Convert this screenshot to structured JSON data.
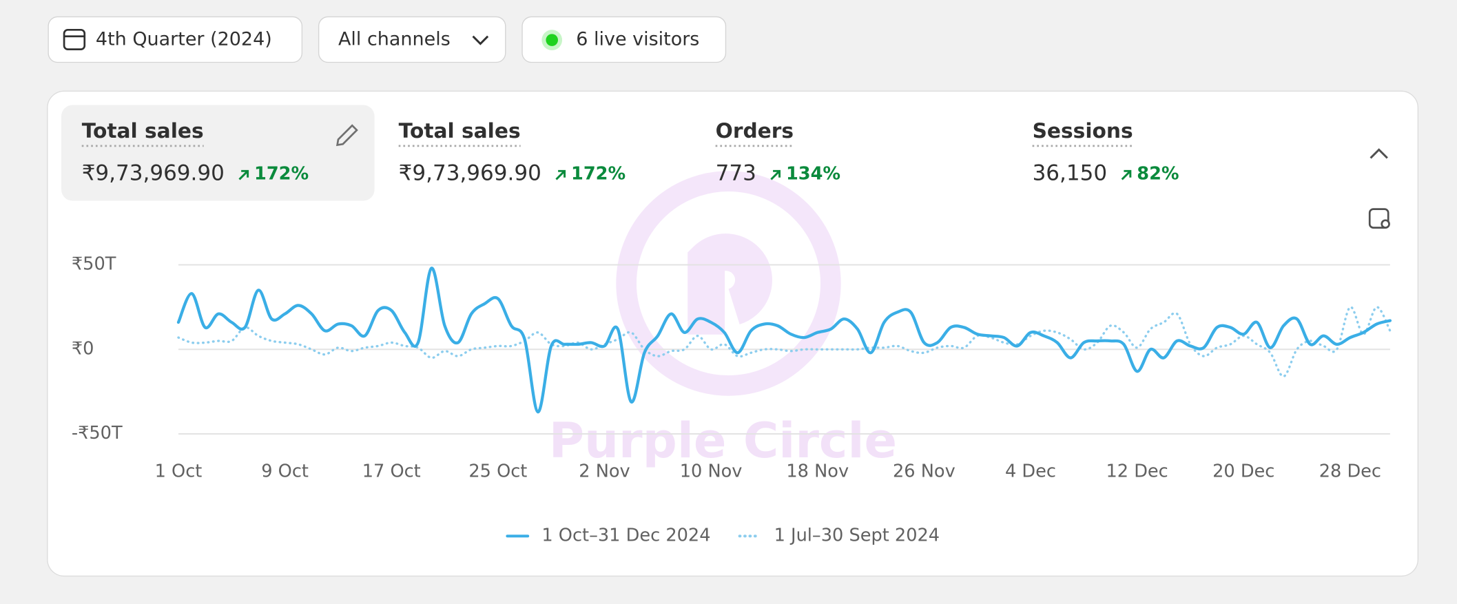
{
  "toolbar": {
    "date_range": "4th Quarter (2024)",
    "channel": "All channels",
    "live_visitors": "6 live visitors"
  },
  "metrics": [
    {
      "label": "Total sales",
      "value": "₹9,73,969.90",
      "change": "172%"
    },
    {
      "label": "Total sales",
      "value": "₹9,73,969.90",
      "change": "172%"
    },
    {
      "label": "Orders",
      "value": "773",
      "change": "134%"
    },
    {
      "label": "Sessions",
      "value": "36,150",
      "change": "82%"
    }
  ],
  "watermark": "Purple Circle",
  "chart_data": {
    "type": "line",
    "categories": [
      "1 Oct",
      null,
      null,
      null,
      null,
      null,
      null,
      null,
      "9 Oct",
      null,
      null,
      null,
      null,
      null,
      null,
      null,
      "17 Oct",
      null,
      null,
      null,
      null,
      null,
      null,
      null,
      "25 Oct",
      null,
      null,
      null,
      null,
      null,
      null,
      null,
      "2 Nov",
      null,
      null,
      null,
      null,
      null,
      null,
      null,
      "10 Nov",
      null,
      null,
      null,
      null,
      null,
      null,
      null,
      "18 Nov",
      null,
      null,
      null,
      null,
      null,
      null,
      null,
      "26 Nov",
      null,
      null,
      null,
      null,
      null,
      null,
      null,
      "4 Dec",
      null,
      null,
      null,
      null,
      null,
      null,
      null,
      "12 Dec",
      null,
      null,
      null,
      null,
      null,
      null,
      null,
      "20 Dec",
      null,
      null,
      null,
      null,
      null,
      null,
      null,
      "28 Dec",
      null,
      null,
      null
    ],
    "series": [
      {
        "name": "1 Oct–31 Dec 2024",
        "color": "#3aaee6",
        "style": "solid",
        "values": [
          16,
          33,
          13,
          21,
          16,
          13,
          35,
          18,
          21,
          26,
          21,
          11,
          15,
          14,
          8,
          23,
          23,
          10,
          4,
          48,
          14,
          4,
          21,
          27,
          30,
          14,
          6,
          -37,
          2,
          3,
          3,
          4,
          2,
          12,
          -31,
          -2,
          8,
          21,
          10,
          18,
          16,
          10,
          -2,
          11,
          15,
          14,
          9,
          7,
          10,
          12,
          18,
          12,
          -2,
          16,
          22,
          22,
          4,
          4,
          13,
          13,
          9,
          8,
          7,
          2,
          10,
          8,
          4,
          -5,
          4,
          5,
          5,
          3,
          -13,
          0,
          -5,
          5,
          2,
          1,
          13,
          13,
          9,
          16,
          1,
          14,
          18,
          3,
          8,
          3,
          7,
          10,
          15,
          17
        ]
      },
      {
        "name": "1 Jul–30 Sept 2024",
        "color": "#8ccdee",
        "style": "dotted",
        "values": [
          7,
          4,
          4,
          5,
          5,
          13,
          8,
          5,
          4,
          3,
          0,
          -3,
          1,
          -1,
          1,
          2,
          4,
          2,
          1,
          -5,
          -1,
          -4,
          0,
          1,
          2,
          2,
          5,
          10,
          3,
          2,
          4,
          0,
          3,
          6,
          10,
          0,
          -4,
          -1,
          0,
          8,
          0,
          3,
          -4,
          -2,
          0,
          0,
          -1,
          0,
          0,
          0,
          0,
          0,
          1,
          1,
          2,
          -1,
          -2,
          1,
          2,
          1,
          8,
          7,
          4,
          3,
          8,
          11,
          10,
          6,
          0,
          4,
          14,
          10,
          1,
          12,
          16,
          21,
          3,
          -4,
          1,
          3,
          8,
          3,
          -2,
          -16,
          0,
          5,
          2,
          0,
          25,
          9,
          25,
          11
        ]
      }
    ],
    "ylim": [
      -50,
      50
    ],
    "yticks": [
      {
        "value": -50,
        "label": "-₹50T"
      },
      {
        "value": 0,
        "label": "₹0"
      },
      {
        "value": 50,
        "label": "₹50T"
      }
    ],
    "grid": true
  }
}
